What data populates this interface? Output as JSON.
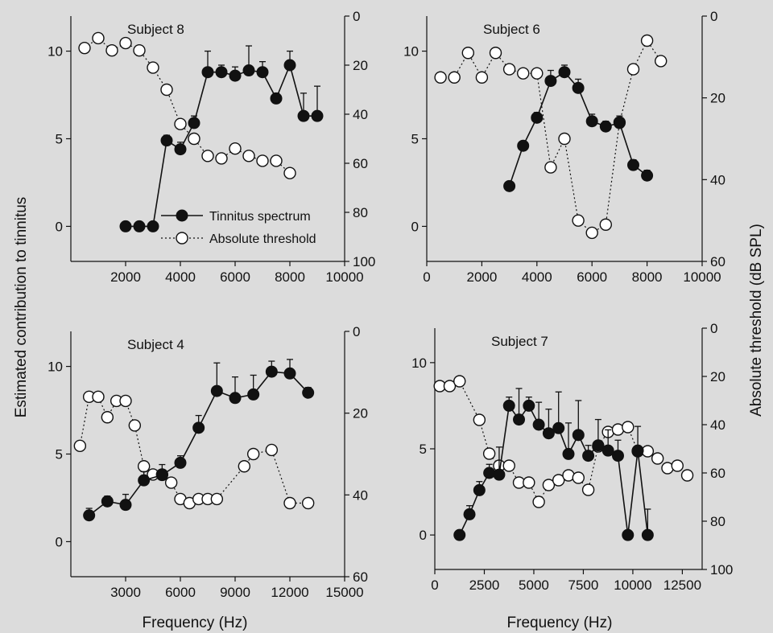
{
  "chart_data": {
    "type": "line",
    "ylabel_left": "Estimated contribution to tinnitus",
    "ylabel_right": "Absolute threshold (dB SPL)",
    "xlabel_bottom": "Frequency (Hz)",
    "legend": {
      "placement": "inside subject 8 panel, lower-right",
      "entries": [
        "Tinnitus spectrum",
        "Absolute threshold"
      ]
    },
    "panels": [
      {
        "id": "subject8",
        "title": "Subject 8",
        "xlim": [
          0,
          10000
        ],
        "xticks": [
          2000,
          4000,
          6000,
          8000,
          10000
        ],
        "ylim_left": [
          -2,
          12
        ],
        "yticks_left": [
          0,
          5,
          10
        ],
        "ylim_right": [
          0,
          100
        ],
        "yticks_right": [
          0,
          20,
          40,
          60,
          80,
          100
        ],
        "series": [
          {
            "name": "Tinnitus spectrum",
            "x": [
              2000,
              2500,
              3000,
              3500,
              4000,
              4500,
              5000,
              5500,
              6000,
              6500,
              7000,
              7500,
              8000,
              8500,
              9000
            ],
            "y": [
              0,
              0,
              0,
              4.9,
              4.4,
              5.9,
              8.8,
              8.8,
              8.6,
              8.9,
              8.8,
              7.3,
              9.2,
              6.3,
              6.3
            ],
            "err": [
              0,
              0,
              0,
              0.3,
              0.4,
              0.4,
              1.2,
              0.4,
              0.5,
              1.4,
              0.6,
              0.3,
              0.8,
              1.3,
              1.7
            ]
          },
          {
            "name": "Absolute threshold",
            "x": [
              500,
              1000,
              1500,
              2000,
              2500,
              3000,
              3500,
              4000,
              4500,
              5000,
              5500,
              6000,
              6500,
              7000,
              7500,
              8000
            ],
            "y": [
              13,
              9,
              14,
              11,
              14,
              21,
              30,
              44,
              50,
              57,
              58,
              54,
              57,
              59,
              59,
              64
            ]
          }
        ]
      },
      {
        "id": "subject6",
        "title": "Subject 6",
        "xlim": [
          0,
          10000
        ],
        "xticks": [
          0,
          2000,
          4000,
          6000,
          8000,
          10000
        ],
        "ylim_left": [
          -2,
          12
        ],
        "yticks_left": [
          0,
          5,
          10
        ],
        "ylim_right": [
          0,
          60
        ],
        "yticks_right": [
          0,
          20,
          40,
          60
        ],
        "series": [
          {
            "name": "Tinnitus spectrum",
            "x": [
              3000,
              3500,
              4000,
              4500,
              5000,
              5500,
              6000,
              6500,
              7000,
              7500,
              8000
            ],
            "y": [
              2.3,
              4.6,
              6.2,
              8.3,
              8.8,
              7.9,
              6.0,
              5.7,
              5.9,
              3.5,
              2.9
            ],
            "err": [
              0,
              0,
              0.3,
              0.6,
              0.4,
              0.5,
              0.4,
              0.3,
              0.4,
              0.3,
              0.3
            ]
          },
          {
            "name": "Absolute threshold",
            "x": [
              500,
              1000,
              1500,
              2000,
              2500,
              3000,
              3500,
              4000,
              4500,
              5000,
              5500,
              6000,
              6500,
              7000,
              7500,
              8000,
              8500
            ],
            "y": [
              15,
              15,
              9,
              15,
              9,
              13,
              14,
              14,
              37,
              30,
              50,
              53,
              51,
              26,
              13,
              6,
              11
            ]
          }
        ]
      },
      {
        "id": "subject4",
        "title": "Subject 4",
        "xlim": [
          0,
          15000
        ],
        "xticks": [
          3000,
          6000,
          9000,
          12000,
          15000
        ],
        "ylim_left": [
          -2,
          12
        ],
        "yticks_left": [
          0,
          5,
          10
        ],
        "ylim_right": [
          0,
          60
        ],
        "yticks_right": [
          0,
          20,
          40,
          60
        ],
        "series": [
          {
            "name": "Tinnitus spectrum",
            "x": [
              1000,
              2000,
              3000,
              4000,
              5000,
              6000,
              7000,
              8000,
              9000,
              10000,
              11000,
              12000,
              13000
            ],
            "y": [
              1.5,
              2.3,
              2.1,
              3.5,
              3.8,
              4.5,
              6.5,
              8.6,
              8.2,
              8.4,
              9.7,
              9.6,
              8.5
            ],
            "err": [
              0.4,
              0.3,
              0.6,
              0.5,
              0.6,
              0.4,
              0.7,
              1.6,
              1.2,
              1.1,
              0.6,
              0.8,
              0.3
            ]
          },
          {
            "name": "Absolute threshold",
            "x": [
              500,
              1000,
              1500,
              2000,
              2500,
              3000,
              3500,
              4000,
              4500,
              5000,
              5500,
              6000,
              6500,
              7000,
              7500,
              8000,
              9500,
              10000,
              11000,
              12000,
              13000
            ],
            "y": [
              28,
              16,
              16,
              21,
              17,
              17,
              23,
              33,
              35,
              35,
              37,
              41,
              42,
              41,
              41,
              41,
              33,
              30,
              29,
              42,
              42
            ]
          }
        ]
      },
      {
        "id": "subject7",
        "title": "Subject 7",
        "xlim": [
          0,
          13500
        ],
        "xticks": [
          0,
          2500,
          5000,
          7500,
          10000,
          12500
        ],
        "ylim_left": [
          -2,
          12
        ],
        "yticks_left": [
          0,
          5,
          10
        ],
        "ylim_right": [
          0,
          100
        ],
        "yticks_right": [
          0,
          20,
          40,
          60,
          80,
          100
        ],
        "series": [
          {
            "name": "Tinnitus spectrum",
            "x": [
              1250,
              1750,
              2250,
              2750,
              3250,
              3750,
              4250,
              4750,
              5250,
              5750,
              6250,
              6750,
              7250,
              7750,
              8250,
              8750,
              9250,
              9750,
              10250,
              10750
            ],
            "y": [
              0,
              1.2,
              2.6,
              3.6,
              3.5,
              7.5,
              6.7,
              7.5,
              6.4,
              5.9,
              6.2,
              4.7,
              5.8,
              4.6,
              5.2,
              4.9,
              4.6,
              0,
              4.9,
              0
            ],
            "err": [
              0,
              0.5,
              0.5,
              0.5,
              1.6,
              0.5,
              1.8,
              0.5,
              1.3,
              1.4,
              2.1,
              1.8,
              2.0,
              0.6,
              1.5,
              1.2,
              0.9,
              0,
              1.4,
              1.5
            ]
          },
          {
            "name": "Absolute threshold",
            "x": [
              250,
              750,
              1250,
              2250,
              2750,
              3250,
              3750,
              4250,
              4750,
              5250,
              5750,
              6250,
              6750,
              7250,
              7750,
              8250,
              8750,
              9250,
              9750,
              10250,
              10750,
              11250,
              11750,
              12250,
              12750
            ],
            "y": [
              24,
              24,
              22,
              38,
              52,
              57,
              57,
              64,
              64,
              72,
              65,
              63,
              61,
              62,
              67,
              49,
              43,
              42,
              41,
              51,
              51,
              54,
              58,
              57,
              61
            ]
          }
        ]
      }
    ]
  }
}
